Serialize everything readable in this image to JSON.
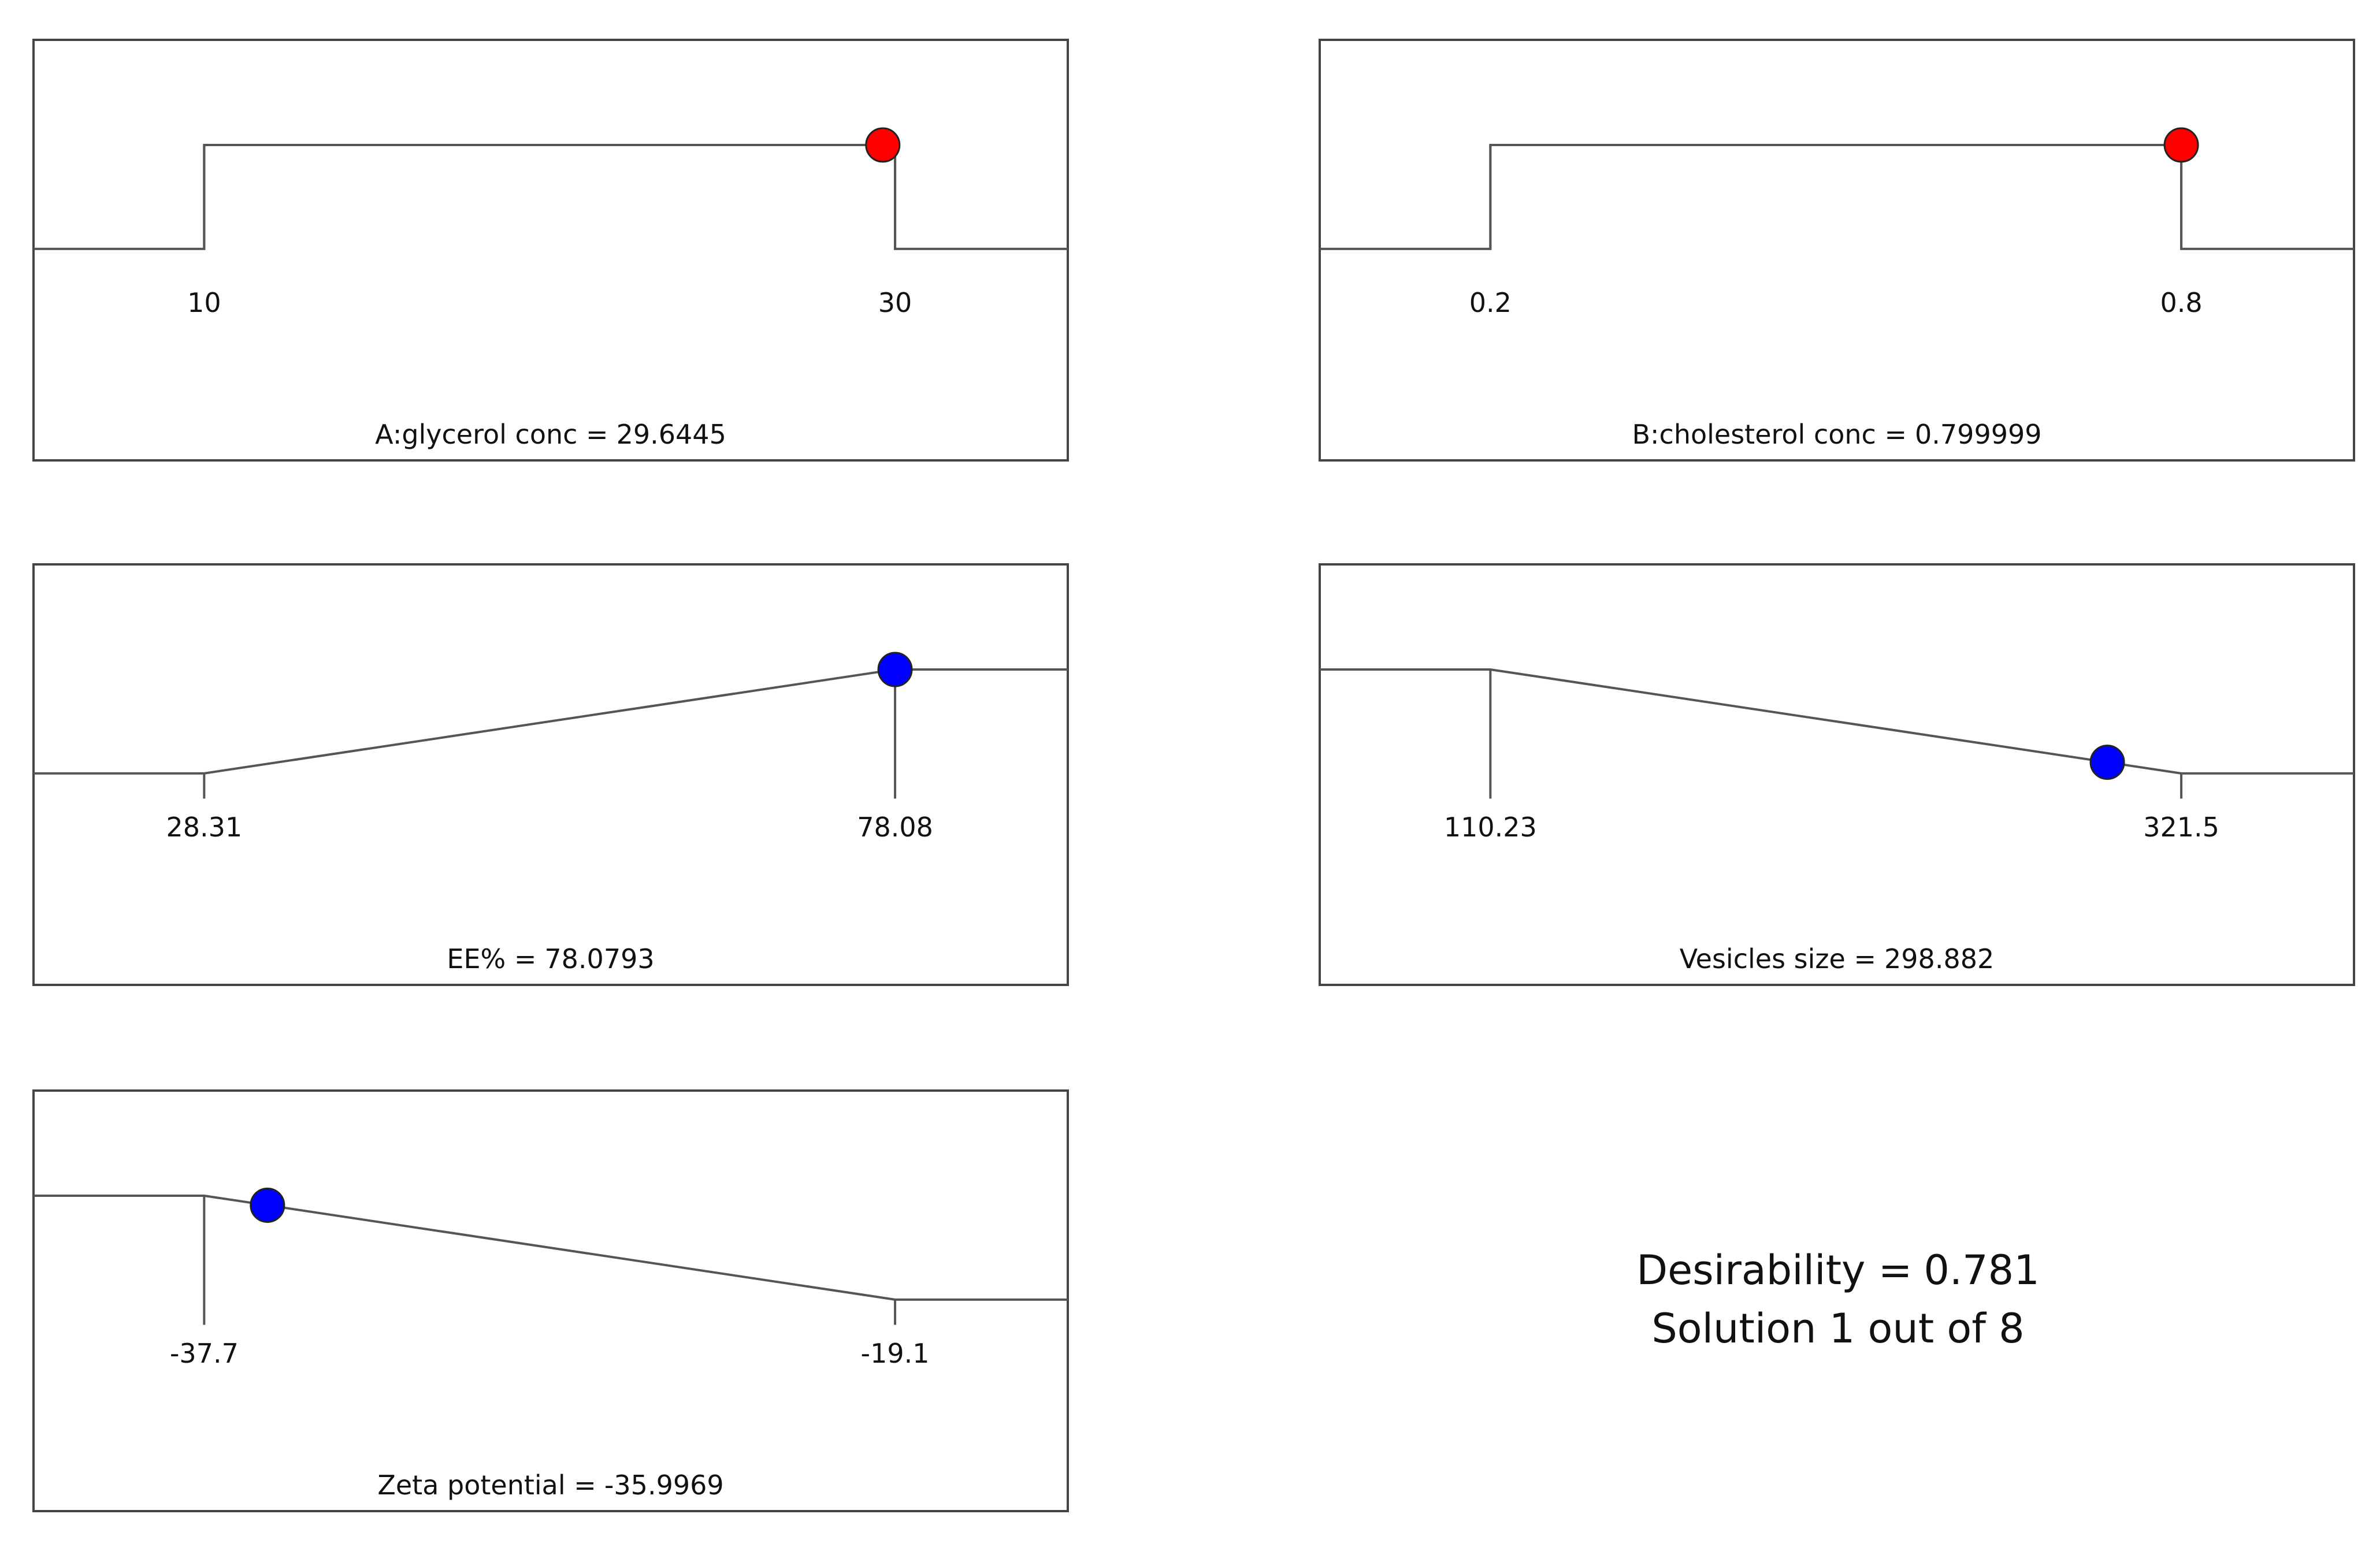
{
  "chart_data": [
    {
      "type": "ramp",
      "goal": "range",
      "label": "A:glycerol conc =",
      "value": 29.6445,
      "ticks": [
        10,
        30
      ],
      "color": "#ff0000"
    },
    {
      "type": "ramp",
      "goal": "range",
      "label": "B:cholesterol conc =",
      "value": 0.799999,
      "ticks": [
        0.2,
        0.8
      ],
      "color": "#ff0000"
    },
    {
      "type": "ramp",
      "goal": "maximize",
      "label": "EE% =",
      "value": 78.0793,
      "ticks": [
        28.31,
        78.08
      ],
      "color": "#0000ff"
    },
    {
      "type": "ramp",
      "goal": "minimize",
      "label": "Vesicles size =",
      "value": 298.882,
      "ticks": [
        110.23,
        321.5
      ],
      "color": "#0000ff"
    },
    {
      "type": "ramp",
      "goal": "minimize",
      "label": "Zeta potential =",
      "value": -35.9969,
      "ticks": [
        -37.7,
        -19.1
      ],
      "color": "#0000ff"
    }
  ],
  "summary": {
    "label": "Desirability =",
    "value": 0.781,
    "solution": "Solution 1 out of 8"
  }
}
